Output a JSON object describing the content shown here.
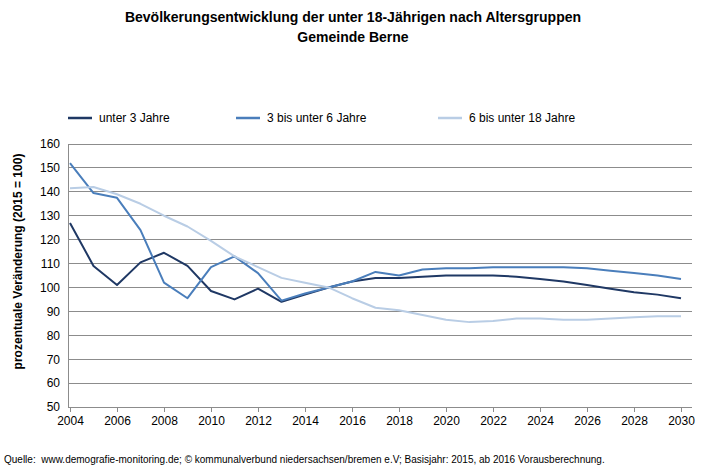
{
  "chart_data": {
    "type": "line",
    "title": "Bevölkerungsentwicklung der unter 18-Jährigen nach Altersgruppen",
    "subtitle": "Gemeinde Berne",
    "y_label": "prozentuale Veränderung (2015 = 100)",
    "source": "Quelle:  www.demografie-monitoring.de; © kommunalverbund niedersachsen/bremen e.V; Basisjahr: 2015, ab 2016 Vorausberechnung.",
    "x": [
      2004,
      2005,
      2006,
      2007,
      2008,
      2009,
      2010,
      2011,
      2012,
      2013,
      2014,
      2015,
      2016,
      2017,
      2018,
      2019,
      2020,
      2021,
      2022,
      2023,
      2024,
      2025,
      2026,
      2027,
      2028,
      2029,
      2030
    ],
    "series": [
      {
        "name": "unter 3 Jahre",
        "color": "#1f3864",
        "values": [
          127,
          109,
          101,
          110.5,
          114.5,
          109,
          98.5,
          95,
          99.5,
          94,
          97,
          100,
          102.5,
          104,
          104,
          104.5,
          105,
          105,
          105,
          104.5,
          103.5,
          102.5,
          101,
          99.5,
          98,
          97,
          95.5
        ]
      },
      {
        "name": "3 bis unter 6 Jahre",
        "color": "#4a7ebb",
        "values": [
          152,
          139.5,
          137.5,
          124,
          102,
          95.5,
          108.5,
          113,
          106,
          94.5,
          97.5,
          100,
          102.5,
          106.5,
          105,
          107.5,
          108,
          108,
          108.5,
          108.5,
          108.5,
          108.5,
          108,
          107,
          106,
          105,
          103.5
        ]
      },
      {
        "name": "6 bis unter 18 Jahre",
        "color": "#b9cde5",
        "values": [
          141.5,
          142,
          139,
          135,
          130,
          125.5,
          119.5,
          113,
          108.5,
          104,
          102,
          100,
          95.5,
          91.5,
          90.5,
          88.5,
          86.5,
          85.5,
          86,
          87,
          87,
          86.5,
          86.5,
          87,
          87.5,
          88,
          88
        ]
      }
    ],
    "xlim": [
      2004,
      2030
    ],
    "xticks": [
      2004,
      2006,
      2008,
      2010,
      2012,
      2014,
      2016,
      2018,
      2020,
      2022,
      2024,
      2026,
      2028,
      2030
    ],
    "ylim": [
      50,
      160
    ],
    "yticks": [
      50,
      60,
      70,
      80,
      90,
      100,
      110,
      120,
      130,
      140,
      150,
      160
    ],
    "grid": true,
    "legend": "top"
  }
}
